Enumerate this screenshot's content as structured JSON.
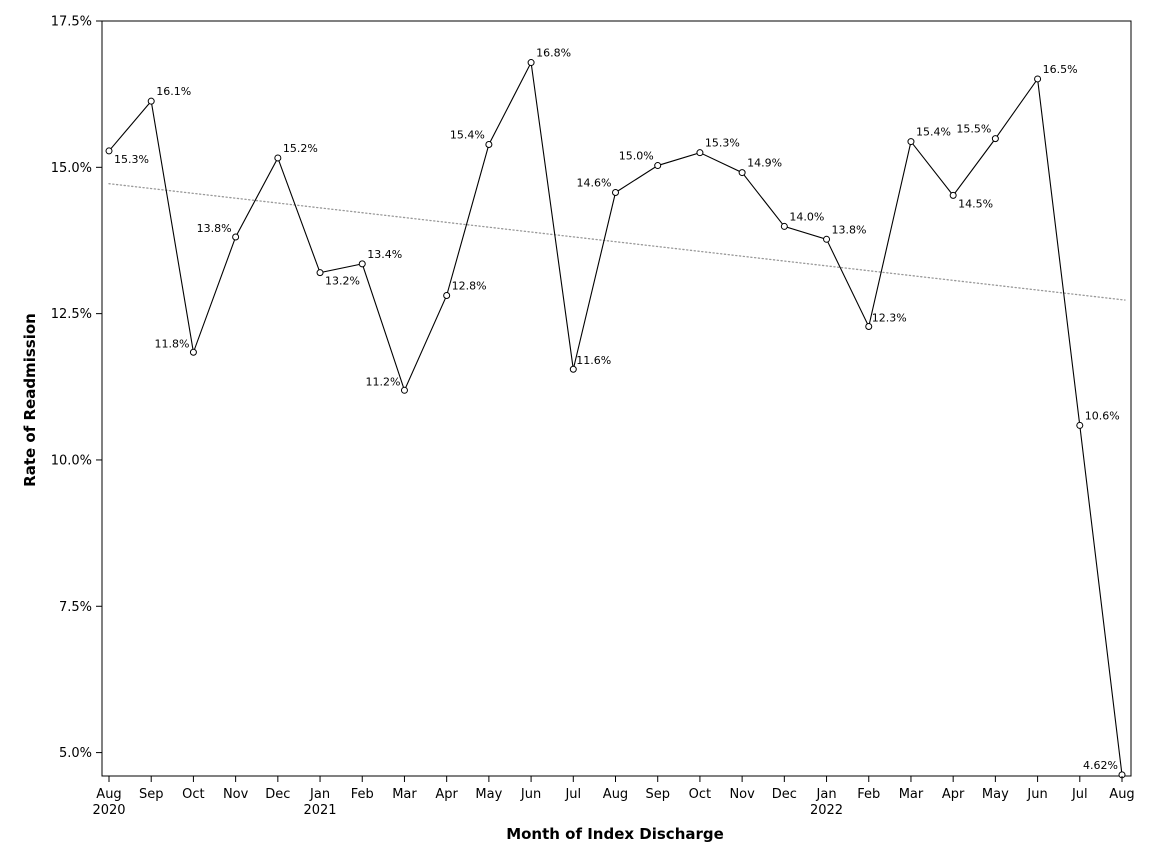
{
  "chart_data": {
    "type": "line",
    "xlabel": "Month of Index Discharge",
    "ylabel": "Rate of Readmission",
    "ylim": [
      4.6,
      17.5
    ],
    "yticks": [
      "5.0%",
      "7.5%",
      "10.0%",
      "12.5%",
      "15.0%",
      "17.5%"
    ],
    "ytick_values": [
      5.0,
      7.5,
      10.0,
      12.5,
      15.0,
      17.5
    ],
    "categories": [
      "Aug",
      "Sep",
      "Oct",
      "Nov",
      "Dec",
      "Jan",
      "Feb",
      "Mar",
      "Apr",
      "May",
      "Jun",
      "Jul",
      "Aug",
      "Sep",
      "Oct",
      "Nov",
      "Dec",
      "Jan",
      "Feb",
      "Mar",
      "Apr",
      "May",
      "Jun",
      "Jul",
      "Aug"
    ],
    "year_labels": [
      {
        "index": 0,
        "text": "2020"
      },
      {
        "index": 5,
        "text": "2021"
      },
      {
        "index": 17,
        "text": "2022"
      }
    ],
    "series": [
      {
        "values": [
          15.28,
          16.13,
          11.84,
          13.81,
          15.16,
          13.2,
          13.35,
          11.19,
          12.81,
          15.39,
          16.79,
          11.55,
          14.57,
          15.03,
          15.25,
          14.91,
          13.99,
          13.77,
          12.28,
          15.44,
          14.52,
          15.49,
          16.51,
          10.59,
          4.62
        ],
        "labels": [
          "15.3%",
          "16.1%",
          "11.8%",
          "13.8%",
          "15.2%",
          "13.2%",
          "13.4%",
          "11.2%",
          "12.8%",
          "15.4%",
          "16.8%",
          "11.6%",
          "14.6%",
          "15.0%",
          "15.3%",
          "14.9%",
          "14.0%",
          "13.8%",
          "12.3%",
          "15.4%",
          "14.5%",
          "15.5%",
          "16.5%",
          "10.6%",
          "4.62%"
        ],
        "label_positions": [
          "below-right",
          "above-right",
          "left",
          "left",
          "above-right",
          "below-right",
          "above-right",
          "left",
          "above-right",
          "above-left",
          "above-right",
          "right",
          "above-left",
          "above-left",
          "above-right",
          "above-right",
          "above-right",
          "above-right",
          "right",
          "above-right",
          "below-right",
          "above-left",
          "above-right",
          "above-right",
          "above-left"
        ]
      }
    ],
    "trendline": {
      "style": "dotted",
      "start": 14.72,
      "end": 12.74,
      "color": "#999999"
    },
    "grid": false,
    "legend": "none"
  }
}
